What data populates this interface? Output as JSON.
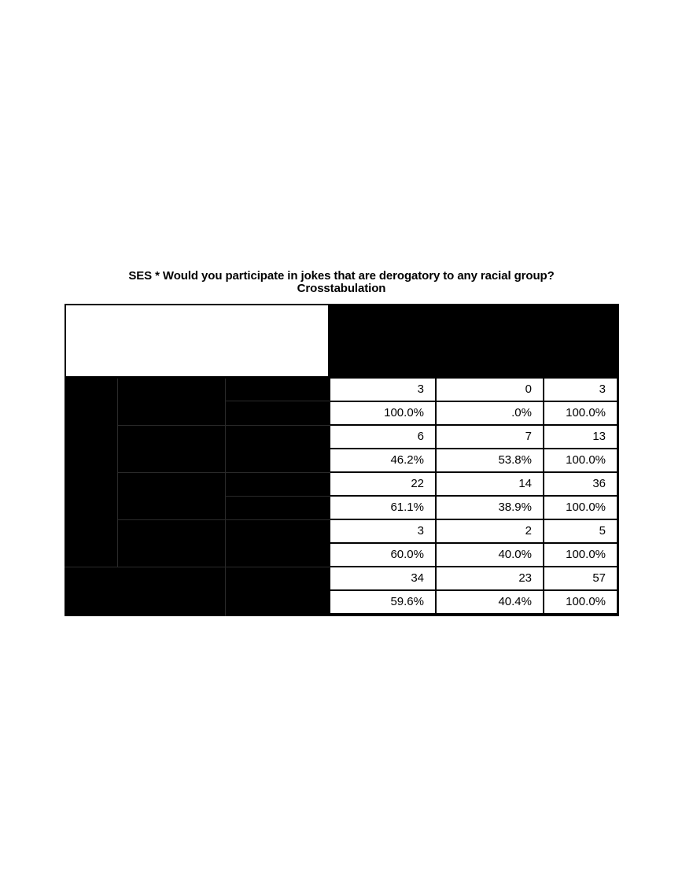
{
  "title": {
    "line1": "SES * Would you participate in jokes that are derogatory to any racial group?",
    "line2": "Crosstabulation"
  },
  "rows": [
    {
      "count": [
        "3",
        "0",
        "3"
      ],
      "percent": [
        "100.0%",
        ".0%",
        "100.0%"
      ]
    },
    {
      "count": [
        "6",
        "7",
        "13"
      ],
      "percent": [
        "46.2%",
        "53.8%",
        "100.0%"
      ]
    },
    {
      "count": [
        "22",
        "14",
        "36"
      ],
      "percent": [
        "61.1%",
        "38.9%",
        "100.0%"
      ]
    },
    {
      "count": [
        "3",
        "2",
        "5"
      ],
      "percent": [
        "60.0%",
        "40.0%",
        "100.0%"
      ]
    },
    {
      "count": [
        "34",
        "23",
        "57"
      ],
      "percent": [
        "59.6%",
        "40.4%",
        "100.0%"
      ]
    }
  ]
}
